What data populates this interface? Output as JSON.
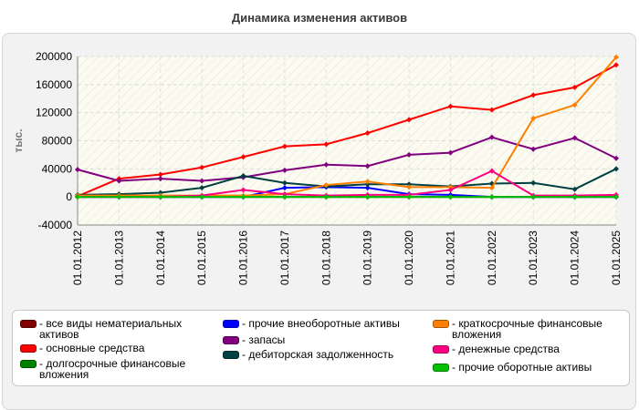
{
  "title": "Динамика изменения активов",
  "chart_data": {
    "type": "line",
    "title": "Динамика изменения активов",
    "xlabel": "",
    "ylabel": "тыс.",
    "ylim": [
      -40000,
      200000
    ],
    "yticks": [
      -40000,
      0,
      40000,
      80000,
      120000,
      160000,
      200000
    ],
    "grid": true,
    "legend_position": "bottom",
    "categories": [
      "01.01.2012",
      "01.01.2013",
      "01.01.2014",
      "01.01.2015",
      "01.01.2016",
      "01.01.2017",
      "01.01.2018",
      "01.01.2019",
      "01.01.2020",
      "01.01.2021",
      "01.01.2022",
      "01.01.2023",
      "01.01.2024",
      "01.01.2025"
    ],
    "series": [
      {
        "name": "все виды нематериальных активов",
        "color": "#800000",
        "values": [
          0,
          0,
          0,
          0,
          0,
          0,
          0,
          0,
          0,
          0,
          0,
          0,
          0,
          0
        ]
      },
      {
        "name": "основные средства",
        "color": "#ff0000",
        "values": [
          1000,
          26000,
          32000,
          42000,
          57000,
          72000,
          75000,
          91000,
          110000,
          129000,
          124000,
          145000,
          156000,
          188000
        ]
      },
      {
        "name": "долгосрочные финансовые вложения",
        "color": "#008000",
        "values": [
          0,
          0,
          0,
          0,
          0,
          0,
          0,
          0,
          0,
          0,
          0,
          0,
          0,
          0
        ]
      },
      {
        "name": "прочие внеоборотные активы",
        "color": "#0000ff",
        "values": [
          0,
          0,
          0,
          0,
          0,
          13000,
          14000,
          13000,
          4000,
          3000,
          0,
          0,
          0,
          0
        ]
      },
      {
        "name": "запасы",
        "color": "#800080",
        "values": [
          39000,
          23000,
          26000,
          23000,
          28000,
          38000,
          46000,
          44000,
          60000,
          63000,
          85000,
          68000,
          84000,
          55000
        ]
      },
      {
        "name": "дебиторская задолженность",
        "color": "#004040",
        "values": [
          3000,
          4000,
          6000,
          13000,
          30000,
          20000,
          15000,
          18000,
          18000,
          15000,
          19000,
          20000,
          11000,
          40000
        ]
      },
      {
        "name": "краткосрочные финансовые вложения",
        "color": "#ff8000",
        "values": [
          2000,
          2000,
          2000,
          2000,
          2000,
          4000,
          17000,
          22000,
          14000,
          14000,
          13000,
          112000,
          131000,
          199000
        ]
      },
      {
        "name": "денежные средства",
        "color": "#ff0080",
        "values": [
          0,
          0,
          0,
          2000,
          10000,
          4000,
          2000,
          3000,
          3000,
          10000,
          37000,
          2000,
          2000,
          3000
        ]
      },
      {
        "name": "прочие оборотные активы",
        "color": "#00c000",
        "values": [
          0,
          0,
          0,
          0,
          0,
          0,
          0,
          0,
          0,
          0,
          0,
          0,
          0,
          0
        ]
      }
    ]
  },
  "legend": [
    {
      "label": "- все виды нематериальных активов",
      "color": "#800000"
    },
    {
      "label": "- прочие внеоборотные активы",
      "color": "#0000ff"
    },
    {
      "label": "- краткосрочные финансовые вложения",
      "color": "#ff8000"
    },
    {
      "label": "- основные средства",
      "color": "#ff0000"
    },
    {
      "label": "- запасы",
      "color": "#800080"
    },
    {
      "label": "- денежные средства",
      "color": "#ff0080"
    },
    {
      "label": "- долгосрочные финансовые вложения",
      "color": "#008000"
    },
    {
      "label": "- дебиторская задолженность",
      "color": "#004040"
    },
    {
      "label": "- прочие оборотные активы",
      "color": "#00c000"
    }
  ]
}
